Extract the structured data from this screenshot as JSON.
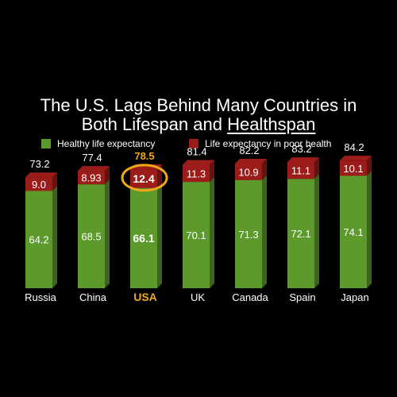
{
  "chart_data": {
    "type": "bar",
    "stacked": true,
    "title_line1": "The U.S. Lags Behind Many Countries in",
    "title_line2_prefix": "Both Lifespan and ",
    "title_line2_underlined": "Healthspan",
    "categories": [
      "Russia",
      "China",
      "USA",
      "UK",
      "Canada",
      "Spain",
      "Japan"
    ],
    "series": [
      {
        "name": "Healthy life expectancy",
        "color": "#5c9a2c",
        "values": [
          64.2,
          68.5,
          66.1,
          70.1,
          71.3,
          72.1,
          74.1
        ],
        "labels": [
          "64.2",
          "68.5",
          "66.1",
          "70.1",
          "71.3",
          "72.1",
          "74.1"
        ]
      },
      {
        "name": "Life expectancy in poor health",
        "color": "#9b1c19",
        "values": [
          9.0,
          8.93,
          12.4,
          11.3,
          10.9,
          11.1,
          10.1
        ],
        "labels": [
          "9.0",
          "8.93",
          "12.4",
          "11.3",
          "10.9",
          "11.1",
          "10.1"
        ]
      }
    ],
    "totals": [
      73.2,
      77.4,
      78.5,
      81.4,
      82.2,
      83.2,
      84.2
    ],
    "total_labels": [
      "73.2",
      "77.4",
      "78.5",
      "81.4",
      "82.2",
      "83.2",
      "84.2"
    ],
    "highlight_category": "USA",
    "highlight_color": "#f0a818",
    "ylim": [
      0,
      90
    ],
    "legend_position": "top",
    "grid": false
  }
}
